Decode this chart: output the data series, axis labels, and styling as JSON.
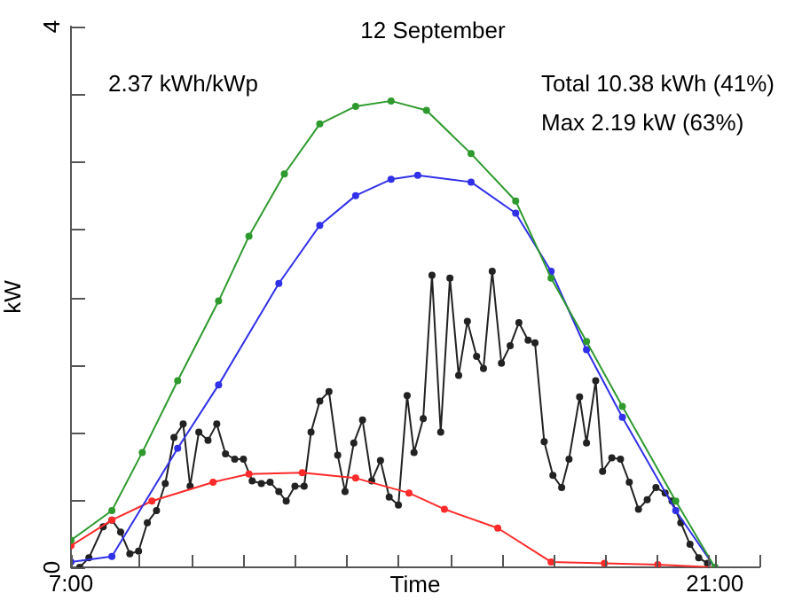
{
  "chart_data": {
    "type": "line",
    "title": "12 September",
    "xlabel": "Time",
    "ylabel": "kW",
    "annotations": [
      "2.37 kWh/kWp",
      "Total 10.38 kWh (41%)",
      "Max 2.19 kW (63%)"
    ],
    "xlim": [
      7,
      21.97
    ],
    "xticks": [
      {
        "value": 7,
        "label": "7:00"
      },
      {
        "value": 8.48,
        "label": null
      },
      {
        "value": 9.62,
        "label": null
      },
      {
        "value": 10.74,
        "label": null
      },
      {
        "value": 11.86,
        "label": null
      },
      {
        "value": 12.97,
        "label": null
      },
      {
        "value": 14.08,
        "label": null
      },
      {
        "value": 15.24,
        "label": null
      },
      {
        "value": 16.36,
        "label": null
      },
      {
        "value": 17.48,
        "label": null
      },
      {
        "value": 18.6,
        "label": null
      },
      {
        "value": 19.72,
        "label": null
      },
      {
        "value": 20.84,
        "label": null
      },
      {
        "value": 21,
        "label": "21:00"
      },
      {
        "value": 21.97,
        "label": null
      }
    ],
    "ylim": [
      0,
      4
    ],
    "yticks": [
      0,
      {
        "value": 0.5,
        "label": null
      },
      {
        "value": 1,
        "label": null
      },
      {
        "value": 1.5,
        "label": null
      },
      {
        "value": 2,
        "label": null
      },
      {
        "value": 2.5,
        "label": null
      },
      {
        "value": 3,
        "label": null
      },
      {
        "value": 3.5,
        "label": null
      },
      4
    ],
    "marker": "circle",
    "line_style": "solid",
    "legend": false,
    "series": [
      {
        "color": "#2e9a2e",
        "x": [
          7.0,
          7.89,
          8.55,
          9.32,
          10.21,
          10.87,
          11.64,
          12.41,
          13.19,
          13.96,
          14.73,
          15.7,
          16.67,
          17.44,
          18.21,
          18.99,
          20.15,
          21.0
        ],
        "values": [
          0.2,
          0.42,
          0.85,
          1.38,
          1.97,
          2.45,
          2.91,
          3.28,
          3.41,
          3.45,
          3.38,
          3.06,
          2.71,
          2.14,
          1.67,
          1.19,
          0.49,
          0
        ]
      },
      {
        "color": "#3030e8",
        "x": [
          7.0,
          7.89,
          9.32,
          10.21,
          11.52,
          12.41,
          13.19,
          13.96,
          14.54,
          15.7,
          16.67,
          17.44,
          18.21,
          18.99,
          20.15,
          21.0
        ],
        "values": [
          0.04,
          0.08,
          0.88,
          1.35,
          2.1,
          2.53,
          2.75,
          2.87,
          2.9,
          2.85,
          2.62,
          2.19,
          1.61,
          1.11,
          0.42,
          0
        ]
      },
      {
        "color": "#ff2a2a",
        "x": [
          7.0,
          7.89,
          8.76,
          10.09,
          10.87,
          12.03,
          13.19,
          14.35,
          15.12,
          16.28,
          17.44,
          18.6,
          19.76,
          21.0
        ],
        "values": [
          0.16,
          0.35,
          0.49,
          0.63,
          0.69,
          0.7,
          0.66,
          0.55,
          0.43,
          0.29,
          0.04,
          0.03,
          0.02,
          0
        ]
      },
      {
        "color": "#222222",
        "x": [
          7.19,
          7.39,
          7.7,
          7.89,
          8.08,
          8.28,
          8.47,
          8.66,
          8.86,
          9.05,
          9.24,
          9.44,
          9.59,
          9.78,
          9.98,
          10.17,
          10.36,
          10.56,
          10.75,
          10.94,
          11.14,
          11.33,
          11.52,
          11.68,
          11.87,
          12.07,
          12.22,
          12.41,
          12.61,
          12.8,
          12.96,
          13.15,
          13.34,
          13.54,
          13.73,
          13.92,
          14.12,
          14.31,
          14.46,
          14.66,
          14.85,
          15.04,
          15.24,
          15.43,
          15.62,
          15.82,
          15.97,
          16.16,
          16.36,
          16.55,
          16.74,
          16.94,
          17.09,
          17.29,
          17.48,
          17.67,
          17.83,
          18.06,
          18.21,
          18.41,
          18.56,
          18.76,
          18.95,
          19.14,
          19.34,
          19.53,
          19.72,
          19.92,
          20.07,
          20.26,
          20.46,
          20.65,
          20.84
        ],
        "values": [
          0,
          0.07,
          0.3,
          0.35,
          0.26,
          0.1,
          0.12,
          0.33,
          0.42,
          0.62,
          0.96,
          1.06,
          0.6,
          1.0,
          0.94,
          1.06,
          0.84,
          0.8,
          0.8,
          0.64,
          0.62,
          0.63,
          0.56,
          0.49,
          0.6,
          0.6,
          1.0,
          1.23,
          1.3,
          0.83,
          0.56,
          0.92,
          1.09,
          0.64,
          0.79,
          0.52,
          0.46,
          1.27,
          0.85,
          1.1,
          2.16,
          1.0,
          2.14,
          1.42,
          1.82,
          1.56,
          1.47,
          2.19,
          1.51,
          1.64,
          1.81,
          1.68,
          1.66,
          0.93,
          0.68,
          0.59,
          0.8,
          1.26,
          0.92,
          1.38,
          0.71,
          0.81,
          0.8,
          0.63,
          0.43,
          0.5,
          0.59,
          0.55,
          0.49,
          0.33,
          0.17,
          0.07,
          0.03
        ]
      }
    ]
  }
}
